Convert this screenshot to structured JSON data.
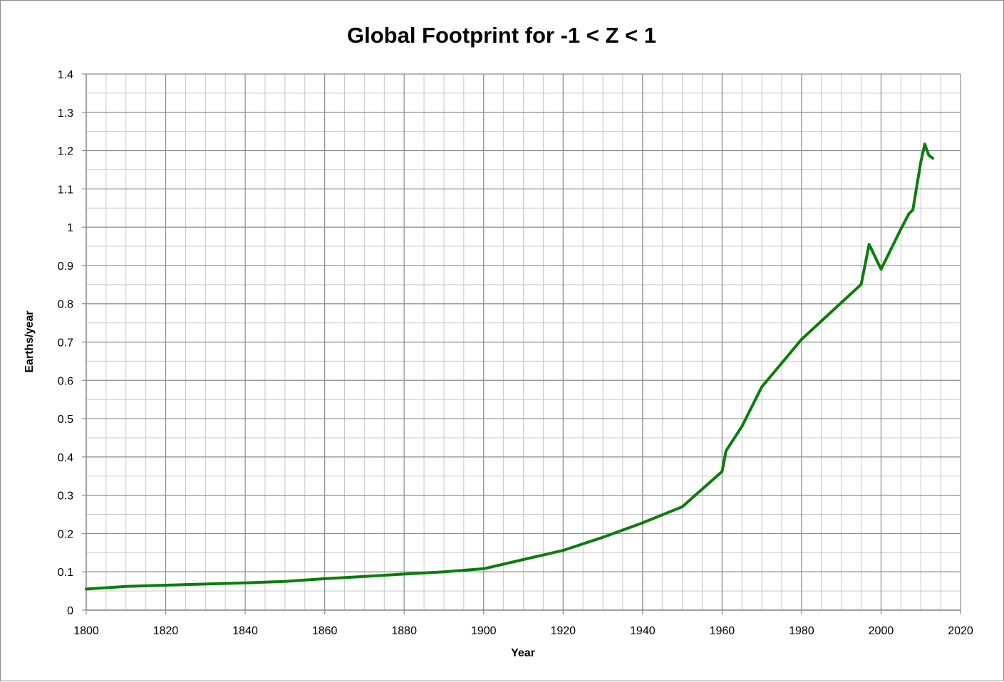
{
  "chart_data": {
    "type": "line",
    "title": "Global Footprint for -1 < Z < 1",
    "xlabel": "Year",
    "ylabel": "Earths/year",
    "xlim": [
      1800,
      2020
    ],
    "ylim": [
      0,
      1.4
    ],
    "x_major_step": 20,
    "x_minor_step": 5,
    "y_major_step": 0.1,
    "y_minor_step": 0.05,
    "x_ticks": [
      "1800",
      "1820",
      "1840",
      "1860",
      "1880",
      "1900",
      "1920",
      "1940",
      "1960",
      "1980",
      "2000",
      "2020"
    ],
    "y_ticks": [
      "0",
      "0.1",
      "0.2",
      "0.3",
      "0.4",
      "0.5",
      "0.6",
      "0.7",
      "0.8",
      "0.9",
      "1",
      "1.1",
      "1.2",
      "1.3",
      "1.4"
    ],
    "grid": true,
    "legend": "none",
    "series": [
      {
        "color": "#0a7d0a",
        "x": [
          1800,
          1810,
          1820,
          1830,
          1840,
          1850,
          1860,
          1870,
          1880,
          1890,
          1900,
          1910,
          1920,
          1930,
          1940,
          1950,
          1960,
          1961,
          1965,
          1970,
          1975,
          1980,
          1985,
          1990,
          1995,
          1997,
          2000,
          2005,
          2007,
          2008,
          2010,
          2011,
          2012,
          2013
        ],
        "y": [
          0.055,
          0.062,
          0.065,
          0.068,
          0.071,
          0.075,
          0.082,
          0.088,
          0.094,
          0.1,
          0.108,
          0.132,
          0.156,
          0.19,
          0.228,
          0.27,
          0.362,
          0.416,
          0.48,
          0.583,
          0.645,
          0.707,
          0.755,
          0.803,
          0.851,
          0.955,
          0.89,
          0.995,
          1.035,
          1.045,
          1.17,
          1.217,
          1.188,
          1.18
        ]
      }
    ]
  }
}
